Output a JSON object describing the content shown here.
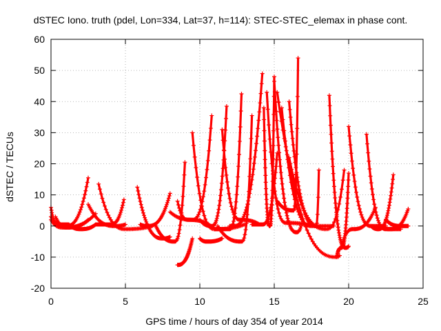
{
  "chart_data": {
    "type": "scatter",
    "title": "dSTEC Iono. truth (pdel, Lon=334, Lat=37, h=114): STEC-STEC_elemax in phase cont.",
    "xlabel": "GPS time / hours of day 354 of year 2014",
    "ylabel": "dSTEC  / TECUs",
    "xlim": [
      0,
      25
    ],
    "ylim": [
      -20,
      60
    ],
    "xticks": [
      0,
      5,
      10,
      15,
      20,
      25
    ],
    "yticks": [
      -20,
      -10,
      0,
      10,
      20,
      30,
      40,
      50,
      60
    ],
    "grid": true,
    "marker": "+",
    "color": "#ff0000",
    "arcs": [
      {
        "start": 0.0,
        "min": 0.4,
        "end": 1.2,
        "ymin": 0.5,
        "ystart": 6,
        "yend": 0.5
      },
      {
        "start": 0.0,
        "min": 1.0,
        "end": 2.5,
        "ymin": 0.0,
        "ystart": 3,
        "yend": 15.5
      },
      {
        "start": 0.3,
        "min": 1.1,
        "end": 2.5,
        "ymin": -0.5,
        "ystart": 3,
        "yend": 2
      },
      {
        "start": 0.0,
        "min": 0.8,
        "end": 3.0,
        "ymin": -0.5,
        "ystart": 2,
        "yend": 4
      },
      {
        "start": 1.2,
        "min": 2.0,
        "end": 3.0,
        "ymin": -1.0,
        "ystart": 0.5,
        "yend": 0.5
      },
      {
        "start": 2.5,
        "min": 4.3,
        "end": 5.0,
        "ymin": 0.0,
        "ystart": 7,
        "yend": 0.5
      },
      {
        "start": 3.2,
        "min": 5.0,
        "end": 6.8,
        "ymin": -1.0,
        "ystart": 13.5,
        "yend": 0.0
      },
      {
        "start": 3.0,
        "min": 4.0,
        "end": 4.9,
        "ymin": 0.5,
        "ystart": 0.5,
        "yend": 8.5
      },
      {
        "start": 5.8,
        "min": 7.5,
        "end": 8.0,
        "ymin": -4.0,
        "ystart": 12.5,
        "yend": -3.5
      },
      {
        "start": 6.0,
        "min": 6.5,
        "end": 8.0,
        "ymin": 0.0,
        "ystart": 0.5,
        "yend": 10.5
      },
      {
        "start": 7.0,
        "min": 8.3,
        "end": 9.0,
        "ymin": -5.0,
        "ystart": 0.5,
        "yend": 20.5
      },
      {
        "start": 8.5,
        "min": 9.2,
        "end": 11.0,
        "ymin": 2.0,
        "ystart": 8,
        "yend": -1.0
      },
      {
        "start": 8.5,
        "min": 8.5,
        "end": 9.5,
        "ymin": -12.5,
        "ystart": -12.5,
        "yend": -4.0
      },
      {
        "start": 8.0,
        "min": 9.5,
        "end": 10.8,
        "ymin": 2.0,
        "ystart": 4.5,
        "yend": 35.5
      },
      {
        "start": 10.0,
        "min": 10.5,
        "end": 11.5,
        "ymin": -5.0,
        "ystart": -4.0,
        "yend": -4.0
      },
      {
        "start": 9.5,
        "min": 11.0,
        "end": 13.0,
        "ymin": -1.0,
        "ystart": 30,
        "yend": 0.5
      },
      {
        "start": 10.0,
        "min": 10.8,
        "end": 11.8,
        "ymin": 0.0,
        "ystart": 2,
        "yend": 38.5
      },
      {
        "start": 11.0,
        "min": 12.0,
        "end": 12.8,
        "ymin": -1.0,
        "ystart": -1.0,
        "yend": 42.5
      },
      {
        "start": 11.5,
        "min": 12.7,
        "end": 14.0,
        "ymin": 2.0,
        "ystart": 31,
        "yend": 0.5
      },
      {
        "start": 11.2,
        "min": 12.8,
        "end": 13.5,
        "ymin": -5.0,
        "ystart": 0,
        "yend": 35.5
      },
      {
        "start": 12.0,
        "min": 12.3,
        "end": 14.2,
        "ymin": 0.0,
        "ystart": 0,
        "yend": 49.0
      },
      {
        "start": 13.5,
        "min": 14.2,
        "end": 15.2,
        "ymin": 0.5,
        "ystart": 0.5,
        "yend": 23.5
      },
      {
        "start": 14.3,
        "min": 14.7,
        "end": 15.0,
        "ymin": 0.0,
        "ystart": 38,
        "yend": 48.0
      },
      {
        "start": 14.5,
        "min": 15.8,
        "end": 17.5,
        "ymin": 1.0,
        "ystart": 43,
        "yend": 0.0
      },
      {
        "start": 15.0,
        "min": 16.5,
        "end": 16.8,
        "ymin": -2.0,
        "ystart": 46.5,
        "yend": 0.0
      },
      {
        "start": 15.2,
        "min": 16.3,
        "end": 16.6,
        "ymin": 5.0,
        "ystart": 8,
        "yend": 54.0
      },
      {
        "start": 15.5,
        "min": 17.5,
        "end": 19.0,
        "ymin": 0.0,
        "ystart": 38,
        "yend": 0.0
      },
      {
        "start": 16.0,
        "min": 17.8,
        "end": 18.0,
        "ymin": 0.0,
        "ystart": 40,
        "yend": 18.0
      },
      {
        "start": 15.2,
        "min": 19.2,
        "end": 19.4,
        "ymin": -10.0,
        "ystart": 43,
        "yend": -9.5
      },
      {
        "start": 16.0,
        "min": 18.5,
        "end": 19.7,
        "ymin": -1.0,
        "ystart": 22,
        "yend": 18.0
      },
      {
        "start": 18.7,
        "min": 19.8,
        "end": 20.0,
        "ymin": -7.0,
        "ystart": 42,
        "yend": -6.5
      },
      {
        "start": 19.2,
        "min": 19.5,
        "end": 20.0,
        "ymin": -7.0,
        "ystart": -10.0,
        "yend": 17.0
      },
      {
        "start": 20.0,
        "min": 21.5,
        "end": 22.5,
        "ymin": 0.0,
        "ystart": 32,
        "yend": 0.0
      },
      {
        "start": 19.5,
        "min": 20.3,
        "end": 21.8,
        "ymin": -1.0,
        "ystart": -7.0,
        "yend": 6.0
      },
      {
        "start": 21.2,
        "min": 22.5,
        "end": 23.5,
        "ymin": -1.0,
        "ystart": 29.5,
        "yend": -1.0
      },
      {
        "start": 21.5,
        "min": 22.0,
        "end": 23.0,
        "ymin": -1.0,
        "ystart": 0,
        "yend": 16.5
      },
      {
        "start": 22.0,
        "min": 22.8,
        "end": 24.0,
        "ymin": -1.0,
        "ystart": 0,
        "yend": 5.5
      },
      {
        "start": 22.5,
        "min": 23.5,
        "end": 24.0,
        "ymin": 0.0,
        "ystart": 2,
        "yend": 0.0
      }
    ]
  }
}
